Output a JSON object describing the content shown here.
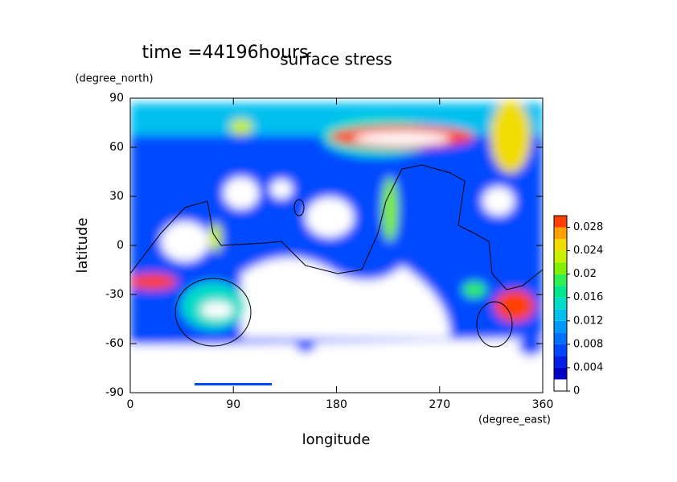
{
  "chart_data": {
    "type": "contour",
    "title": "surface stress",
    "subtitle": "time =44196hours",
    "x_label": "longitude",
    "x_unit": "(degree_east)",
    "y_label": "latitude",
    "y_unit": "(degree_north)",
    "xlim": [
      0,
      360
    ],
    "xticks": [
      0,
      90,
      180,
      270,
      360
    ],
    "ylim": [
      -90,
      90
    ],
    "yticks": [
      -90,
      -60,
      -30,
      0,
      30,
      60,
      90
    ],
    "colorbar": {
      "clim": [
        0,
        0.03
      ],
      "ticks": [
        0,
        0.004,
        0.008,
        0.012,
        0.016,
        0.02,
        0.024,
        0.028
      ],
      "levels": [
        0,
        0.002,
        0.004,
        0.006,
        0.008,
        0.01,
        0.012,
        0.014,
        0.016,
        0.018,
        0.02,
        0.022,
        0.024,
        0.026,
        0.028,
        0.03
      ],
      "colors": [
        "#ffffff",
        "#0000c8",
        "#0020e6",
        "#0048ff",
        "#0070ff",
        "#0098ff",
        "#00c0f0",
        "#00dcc8",
        "#00e68c",
        "#30f050",
        "#80f000",
        "#c8f000",
        "#f0dc00",
        "#ffa000",
        "#ff4000"
      ]
    }
  }
}
